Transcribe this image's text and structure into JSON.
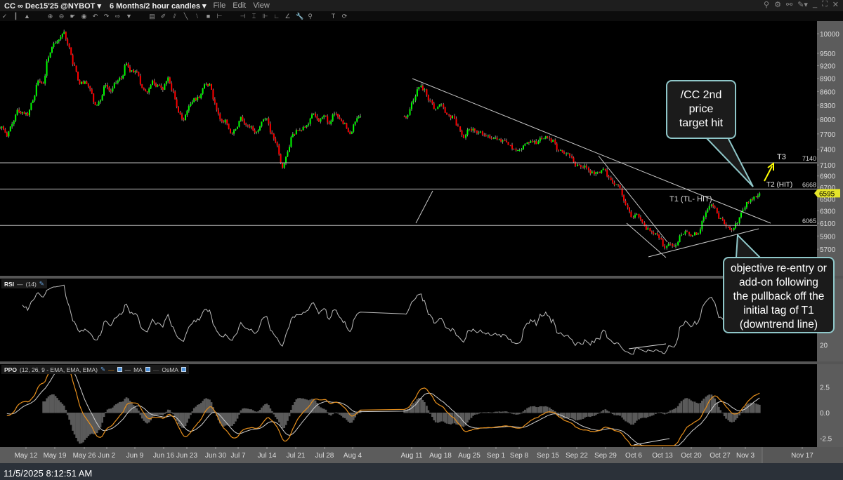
{
  "header": {
    "symbol": "CC ∞ Dec15'25 @NYBOT",
    "period": "6 Months/2 hour candles",
    "menu": [
      "File",
      "Edit",
      "View"
    ]
  },
  "toolbar_icons": [
    "draw-icon",
    "candle-icon",
    "mountain-icon",
    "zoom-in-icon",
    "zoom-out-icon",
    "pointer-icon",
    "crosshair-icon",
    "undo-icon",
    "redo-icon",
    "arrow-icon",
    "dropdown-icon",
    "fib-icon",
    "eraser-icon",
    "channel-icon",
    "line-icon",
    "parallel-icon",
    "rect-icon",
    "gann-icon",
    "gann2-icon",
    "cycle-icon",
    "cycle2-icon",
    "speed-icon",
    "speed2-icon",
    "wrench-icon",
    "pin-icon",
    "text-icon",
    "refresh-icon"
  ],
  "window_icons": [
    "search-icon",
    "gear-icon",
    "link-icon",
    "pin-icon",
    "minimize-icon",
    "maximize-icon",
    "close-icon"
  ],
  "status": {
    "timestamp": "11/5/2025 8:12:51 AM"
  },
  "colors": {
    "up": "#00ff00",
    "down": "#ff0000",
    "ppo": "#e8901c",
    "ma": "#cfcfcf",
    "osma": "#5a5a5a",
    "last_price_badge": "#e6e62a",
    "arrow": "#ffff00",
    "callout_border": "#8fc7c9"
  },
  "chart_data": [
    {
      "type": "candlestick",
      "title": "CC ∞ Dec15'25 @NYBOT",
      "interval": "2 hour candles",
      "y_scale": "log",
      "ylim": [
        5550,
        10400
      ],
      "y_ticks": [
        10000,
        9500,
        9200,
        8900,
        8600,
        8300,
        8000,
        7700,
        7400,
        7100,
        6900,
        6700,
        6500,
        6300,
        6100,
        5900,
        5700
      ],
      "x_ticks": [
        "May 12",
        "May 19",
        "May 26",
        "Jun 2",
        "Jun 9",
        "Jun 16",
        "Jun 23",
        "Jun 30",
        "Jul 7",
        "Jul 14",
        "Jul 21",
        "Jul 28",
        "Aug 4",
        "Aug 11",
        "Aug 18",
        "Aug 25",
        "Sep 1",
        "Sep 8",
        "Sep 15",
        "Sep 22",
        "Sep 29",
        "Oct 6",
        "Oct 13",
        "Oct 20",
        "Oct 27",
        "Nov 3",
        "Nov 17"
      ],
      "segments": [
        {
          "start": "2025-05-05",
          "daily_closes": [
            7850,
            7650,
            7900,
            8200,
            8150,
            8080,
            8400,
            8850,
            8780,
            9400,
            9750,
            9850,
            10050,
            9650,
            9200,
            8770,
            8830,
            8650,
            8300,
            8400,
            8750,
            8600,
            8800,
            8900,
            9250,
            9090,
            9050,
            8680,
            8580,
            8850,
            8750,
            8640,
            8920,
            8600,
            8150,
            7980,
            8280,
            8450,
            8450,
            8760,
            8770,
            8350,
            8000,
            7990,
            7720,
            7800,
            8050,
            7880,
            7850,
            7740,
            7950,
            8020,
            7700,
            7470,
            7050,
            7350,
            7700,
            7770,
            7840,
            7900,
            8120,
            7950,
            8080,
            7900,
            8120,
            8000,
            7920,
            7700,
            7950,
            8070
          ]
        },
        {
          "start": "2025-08-08",
          "daily_closes": [
            8090,
            8400,
            8700,
            8650,
            8400,
            8220,
            8320,
            8100,
            8070,
            7850,
            7620,
            7800,
            7760,
            7750,
            7650,
            7600,
            7590,
            7570,
            7480,
            7400,
            7380,
            7500,
            7560,
            7500,
            7600,
            7620,
            7580,
            7370,
            7310,
            7270,
            7080,
            7060,
            7050,
            6980,
            6970,
            7030,
            6870,
            6740,
            6680,
            6400,
            6200,
            6250,
            6110,
            6020,
            5930,
            5870,
            5720,
            5780,
            5760,
            5920,
            5960,
            5910,
            5940,
            6200,
            6380,
            6350,
            6180,
            6050,
            5990,
            6100,
            6320,
            6440,
            6540,
            6595
          ]
        }
      ],
      "last_price": "6595",
      "levels": [
        {
          "value": 7140,
          "label": "7140",
          "target": "T3"
        },
        {
          "value": 6668,
          "label": "6668",
          "target": "T2 (HIT)"
        },
        {
          "value": 6065,
          "label": "6065"
        }
      ],
      "annotations": {
        "t1": "T1 (TL- HIT)",
        "callout_top": [
          "/CC 2nd",
          "price",
          "target hit"
        ],
        "callout_bottom": [
          "objective re-entry or",
          "add-on following",
          "the pullback off the",
          "initial tag of T1",
          "(downtrend line)"
        ]
      }
    },
    {
      "type": "line",
      "name": "RSI",
      "params": "(14)",
      "y_ticks": [
        20
      ]
    },
    {
      "type": "line",
      "name": "PPO",
      "params": "(12, 26, 9 - EMA, EMA, EMA)",
      "series": [
        "PPO",
        "MA",
        "OsMA"
      ],
      "series_labels": {
        "ma": "MA",
        "osma": "OsMA"
      },
      "y_ticks": [
        "2.5",
        "0.0",
        "-2.5"
      ]
    }
  ]
}
